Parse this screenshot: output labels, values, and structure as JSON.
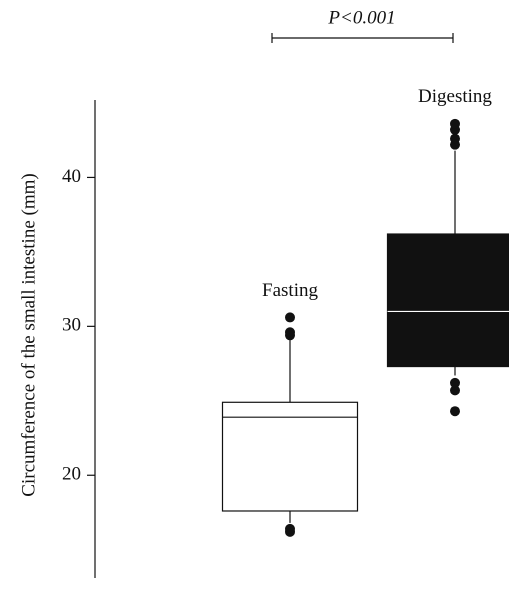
{
  "chart_data": {
    "type": "box",
    "ylabel": "Circumference of the small intestine (mm)",
    "annotation": "P<0.001",
    "categories": [
      "Fasting",
      "Digesting"
    ],
    "series": [
      {
        "name": "Fasting",
        "color": "#ffffff",
        "median_color": "#111111",
        "whisker_low": 16.8,
        "q1": 17.6,
        "median": 23.9,
        "q3": 24.9,
        "whisker_high": 29.1,
        "outliers": [
          16.2,
          16.4,
          29.4,
          29.6,
          30.6
        ]
      },
      {
        "name": "Digesting",
        "color": "#111111",
        "median_color": "#ffffff",
        "whisker_low": 26.7,
        "q1": 27.3,
        "median": 31.0,
        "q3": 36.2,
        "whisker_high": 41.8,
        "outliers": [
          24.3,
          25.7,
          26.2,
          42.2,
          42.6,
          43.2,
          43.6
        ]
      }
    ],
    "ylim": [
      13.1,
      45.2
    ],
    "yticks": [
      20,
      30,
      40
    ]
  }
}
